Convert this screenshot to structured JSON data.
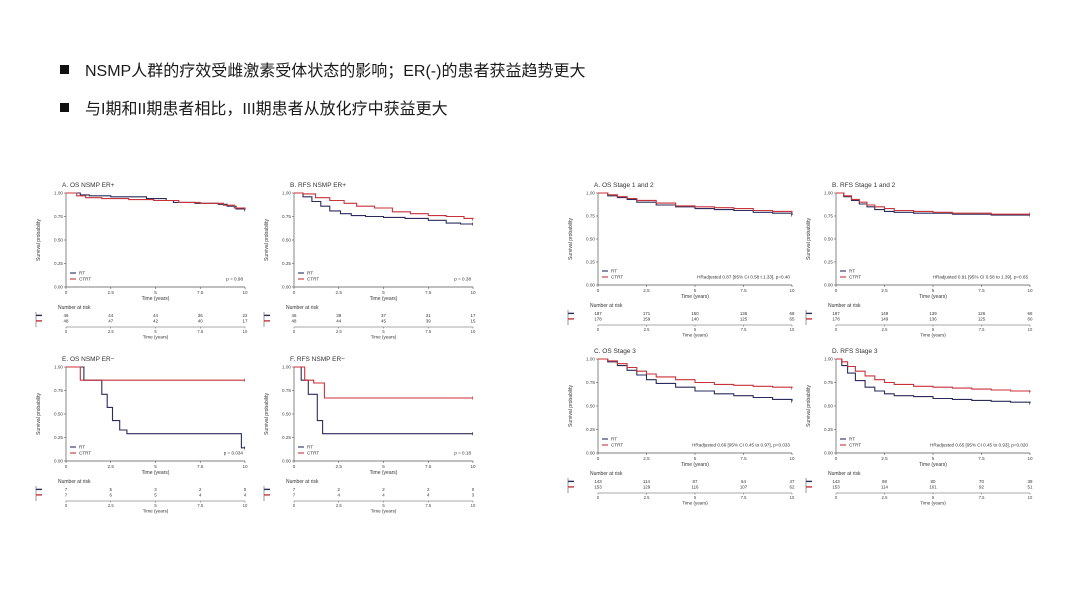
{
  "bullets": [
    "NSMP人群的疗效受雌激素受体状态的影响；ER(-)的患者获益趋势更大",
    "与I期和II期患者相比，III期患者从放化疗中获益更大"
  ],
  "colors": {
    "RT": "#2a2d5c",
    "CTRT": "#c8323a"
  },
  "chart_data": [
    {
      "type": "line",
      "title": "A. OS NSMP ER+",
      "xlabel": "Time (years)",
      "ylabel": "Survival probability",
      "xlim": [
        0,
        10
      ],
      "ylim": [
        0,
        1
      ],
      "xticks": [
        "0",
        "2.5",
        "5",
        "7.5",
        "10"
      ],
      "yticks": [
        "0.00",
        "0.25",
        "0.50",
        "0.75",
        "1.00"
      ],
      "pvalue": "p = 0.98",
      "series": [
        {
          "name": "RT",
          "x": [
            0,
            0.8,
            1.3,
            2.5,
            4.1,
            4.5,
            5.6,
            6.0,
            7.2,
            8.5,
            9.0,
            9.5,
            10
          ],
          "y": [
            1,
            0.98,
            0.97,
            0.96,
            0.96,
            0.94,
            0.92,
            0.9,
            0.89,
            0.88,
            0.86,
            0.83,
            0.82
          ]
        },
        {
          "name": "CTRT",
          "x": [
            0,
            0.6,
            1.1,
            2.0,
            3.5,
            4.9,
            6.3,
            7.5,
            8.8,
            9.4,
            10
          ],
          "y": [
            1,
            0.97,
            0.95,
            0.94,
            0.93,
            0.92,
            0.9,
            0.89,
            0.87,
            0.84,
            0.83
          ]
        }
      ],
      "risk": {
        "label": "Number at risk",
        "rows": [
          [
            "46",
            "44",
            "44",
            "36",
            "22"
          ],
          [
            "48",
            "47",
            "42",
            "40",
            "17"
          ]
        ]
      }
    },
    {
      "type": "line",
      "title": "B. RFS NSMP ER+",
      "xlabel": "Time (years)",
      "ylabel": "Survival probability",
      "xlim": [
        0,
        10
      ],
      "ylim": [
        0,
        1
      ],
      "xticks": [
        "0",
        "2.5",
        "5",
        "7.5",
        "10"
      ],
      "yticks": [
        "0.00",
        "0.25",
        "0.50",
        "0.75",
        "1.00"
      ],
      "pvalue": "p = 0.38",
      "series": [
        {
          "name": "RT",
          "x": [
            0,
            0.5,
            1.0,
            1.5,
            2.0,
            2.6,
            3.2,
            4.0,
            5.0,
            6.2,
            7.5,
            8.5,
            9.3,
            10
          ],
          "y": [
            1,
            0.96,
            0.91,
            0.86,
            0.81,
            0.78,
            0.76,
            0.75,
            0.74,
            0.73,
            0.71,
            0.68,
            0.67,
            0.67
          ]
        },
        {
          "name": "CTRT",
          "x": [
            0,
            0.5,
            1.2,
            2.0,
            2.8,
            3.5,
            4.5,
            5.5,
            6.5,
            7.5,
            8.5,
            9.5,
            10
          ],
          "y": [
            1,
            0.99,
            0.95,
            0.92,
            0.89,
            0.86,
            0.84,
            0.8,
            0.78,
            0.76,
            0.75,
            0.73,
            0.72
          ]
        }
      ],
      "risk": {
        "label": "Number at risk",
        "rows": [
          [
            "46",
            "38",
            "37",
            "31",
            "17"
          ],
          [
            "48",
            "44",
            "45",
            "39",
            "15"
          ]
        ]
      }
    },
    {
      "type": "line",
      "title": "E. OS NSMP ER−",
      "xlabel": "Time (years)",
      "ylabel": "Survival probability",
      "xlim": [
        0,
        10
      ],
      "ylim": [
        0,
        1
      ],
      "xticks": [
        "0",
        "2.5",
        "5",
        "7.5",
        "10"
      ],
      "yticks": [
        "0.00",
        "0.25",
        "0.50",
        "0.75",
        "1.00"
      ],
      "pvalue": "p = 0.034",
      "series": [
        {
          "name": "RT",
          "x": [
            0,
            0.5,
            1.0,
            2.0,
            2.3,
            2.6,
            3.0,
            3.4,
            9.8,
            10
          ],
          "y": [
            1,
            1,
            0.86,
            0.71,
            0.57,
            0.43,
            0.33,
            0.29,
            0.14,
            0.14
          ]
        },
        {
          "name": "CTRT",
          "x": [
            0,
            0.8,
            10
          ],
          "y": [
            1,
            0.86,
            0.86
          ]
        }
      ],
      "risk": {
        "label": "Number at risk",
        "rows": [
          [
            "7",
            "5",
            "3",
            "2",
            "0"
          ],
          [
            "7",
            "6",
            "5",
            "4",
            "4"
          ]
        ]
      }
    },
    {
      "type": "line",
      "title": "F. RFS NSMP ER−",
      "xlabel": "Time (years)",
      "ylabel": "Survival probability",
      "xlim": [
        0,
        10
      ],
      "ylim": [
        0,
        1
      ],
      "xticks": [
        "0",
        "2.5",
        "5",
        "7.5",
        "10"
      ],
      "yticks": [
        "0.00",
        "0.25",
        "0.50",
        "0.75",
        "1.00"
      ],
      "pvalue": "p = 0.18",
      "series": [
        {
          "name": "RT",
          "x": [
            0,
            0.4,
            0.8,
            1.3,
            1.6,
            10
          ],
          "y": [
            1,
            0.86,
            0.71,
            0.43,
            0.29,
            0.29
          ]
        },
        {
          "name": "CTRT",
          "x": [
            0,
            0.6,
            1.1,
            1.7,
            10
          ],
          "y": [
            1,
            0.86,
            0.83,
            0.67,
            0.67
          ]
        }
      ],
      "risk": {
        "label": "Number at risk",
        "rows": [
          [
            "7",
            "2",
            "2",
            "2",
            "0"
          ],
          [
            "7",
            "4",
            "4",
            "4",
            "3"
          ]
        ]
      }
    },
    {
      "type": "line",
      "title": "A. OS Stage 1 and 2",
      "xlabel": "Time (years)",
      "ylabel": "Survival probability",
      "xlim": [
        0,
        10
      ],
      "ylim": [
        0,
        1
      ],
      "xticks": [
        "0",
        "2.5",
        "5",
        "7.5",
        "10"
      ],
      "yticks": [
        "0.00",
        "0.25",
        "0.50",
        "0.75",
        "1.00"
      ],
      "pvalue": "HRadjusted 0.87 [95% CI 0.58 t 1.33], p=0.40",
      "series": [
        {
          "name": "RT",
          "x": [
            0,
            0.5,
            1,
            1.5,
            2,
            3,
            4,
            5,
            6,
            7,
            8,
            9,
            10
          ],
          "y": [
            1,
            0.97,
            0.95,
            0.93,
            0.9,
            0.87,
            0.85,
            0.83,
            0.82,
            0.81,
            0.79,
            0.78,
            0.76
          ]
        },
        {
          "name": "CTRT",
          "x": [
            0,
            0.5,
            1,
            1.5,
            2,
            3,
            4,
            5,
            6,
            7,
            8,
            9,
            10
          ],
          "y": [
            1,
            0.98,
            0.96,
            0.94,
            0.92,
            0.89,
            0.86,
            0.85,
            0.84,
            0.83,
            0.81,
            0.8,
            0.79
          ]
        }
      ],
      "risk": {
        "label": "Number at risk",
        "rows": [
          [
            "187",
            "171",
            "150",
            "136",
            "68"
          ],
          [
            "178",
            "159",
            "140",
            "125",
            "65"
          ]
        ]
      }
    },
    {
      "type": "line",
      "title": "B. RFS Stage 1 and 2",
      "xlabel": "Time (years)",
      "ylabel": "Survival probability",
      "xlim": [
        0,
        10
      ],
      "ylim": [
        0,
        1
      ],
      "xticks": [
        "0",
        "2.5",
        "5",
        "7.5",
        "10"
      ],
      "yticks": [
        "0.00",
        "0.25",
        "0.50",
        "0.75",
        "1.00"
      ],
      "pvalue": "HRadjusted 0.91 [95% CI 0.58 to 1.39], p=0.65",
      "series": [
        {
          "name": "RT",
          "x": [
            0,
            0.4,
            0.8,
            1.2,
            1.6,
            2,
            2.5,
            3,
            4,
            5,
            6,
            7,
            8,
            9,
            10
          ],
          "y": [
            1,
            0.96,
            0.92,
            0.88,
            0.85,
            0.82,
            0.8,
            0.79,
            0.78,
            0.78,
            0.77,
            0.77,
            0.76,
            0.76,
            0.76
          ]
        },
        {
          "name": "CTRT",
          "x": [
            0,
            0.4,
            0.8,
            1.2,
            1.6,
            2,
            2.5,
            3,
            4,
            5,
            6,
            7,
            8,
            9,
            10
          ],
          "y": [
            1,
            0.97,
            0.93,
            0.9,
            0.87,
            0.85,
            0.83,
            0.81,
            0.8,
            0.79,
            0.78,
            0.78,
            0.77,
            0.77,
            0.77
          ]
        }
      ],
      "risk": {
        "label": "Number at risk",
        "rows": [
          [
            "187",
            "149",
            "139",
            "126",
            "66"
          ],
          [
            "178",
            "149",
            "136",
            "125",
            "60"
          ]
        ]
      }
    },
    {
      "type": "line",
      "title": "C. OS Stage 3",
      "xlabel": "Time (years)",
      "ylabel": "Survival probability",
      "xlim": [
        0,
        10
      ],
      "ylim": [
        0,
        1
      ],
      "xticks": [
        "0",
        "2.5",
        "5",
        "7.5",
        "10"
      ],
      "yticks": [
        "0.00",
        "0.25",
        "0.50",
        "0.75",
        "1.00"
      ],
      "pvalue": "HRadjusted 0.66 [95% CI 0.45 to 0.97], p=0.033",
      "series": [
        {
          "name": "RT",
          "x": [
            0,
            0.5,
            1,
            1.5,
            2,
            2.5,
            3,
            4,
            5,
            6,
            7,
            8,
            9,
            10
          ],
          "y": [
            1,
            0.97,
            0.93,
            0.88,
            0.83,
            0.78,
            0.74,
            0.7,
            0.66,
            0.63,
            0.61,
            0.59,
            0.57,
            0.55
          ]
        },
        {
          "name": "CTRT",
          "x": [
            0,
            0.5,
            1,
            1.5,
            2,
            2.5,
            3,
            4,
            5,
            6,
            7,
            8,
            9,
            10
          ],
          "y": [
            1,
            0.98,
            0.95,
            0.91,
            0.87,
            0.84,
            0.81,
            0.78,
            0.75,
            0.73,
            0.72,
            0.71,
            0.7,
            0.69
          ]
        }
      ],
      "risk": {
        "label": "Number at risk",
        "rows": [
          [
            "143",
            "114",
            "87",
            "64",
            "47"
          ],
          [
            "153",
            "129",
            "116",
            "107",
            "62"
          ]
        ]
      }
    },
    {
      "type": "line",
      "title": "D. RFS Stage 3",
      "xlabel": "Time (years)",
      "ylabel": "Survival probability",
      "xlim": [
        0,
        10
      ],
      "ylim": [
        0,
        1
      ],
      "xticks": [
        "0",
        "2.5",
        "5",
        "7.5",
        "10"
      ],
      "yticks": [
        "0.00",
        "0.25",
        "0.50",
        "0.75",
        "1.00"
      ],
      "pvalue": "HRadjusted 0.65 [95% CI 0.45 to 0.93], p=0.020",
      "series": [
        {
          "name": "RT",
          "x": [
            0,
            0.3,
            0.6,
            1,
            1.5,
            2,
            2.5,
            3,
            4,
            5,
            6,
            7,
            8,
            9,
            10
          ],
          "y": [
            1,
            0.93,
            0.85,
            0.77,
            0.7,
            0.66,
            0.63,
            0.61,
            0.6,
            0.58,
            0.57,
            0.56,
            0.55,
            0.54,
            0.53
          ]
        },
        {
          "name": "CTRT",
          "x": [
            0,
            0.3,
            0.6,
            1,
            1.5,
            2,
            2.5,
            3,
            4,
            5,
            6,
            7,
            8,
            9,
            10
          ],
          "y": [
            1,
            0.97,
            0.92,
            0.87,
            0.82,
            0.78,
            0.75,
            0.73,
            0.71,
            0.7,
            0.69,
            0.68,
            0.67,
            0.66,
            0.65
          ]
        }
      ],
      "risk": {
        "label": "Number at risk",
        "rows": [
          [
            "143",
            "98",
            "80",
            "70",
            "39"
          ],
          [
            "153",
            "114",
            "101",
            "92",
            "51"
          ]
        ]
      }
    }
  ]
}
